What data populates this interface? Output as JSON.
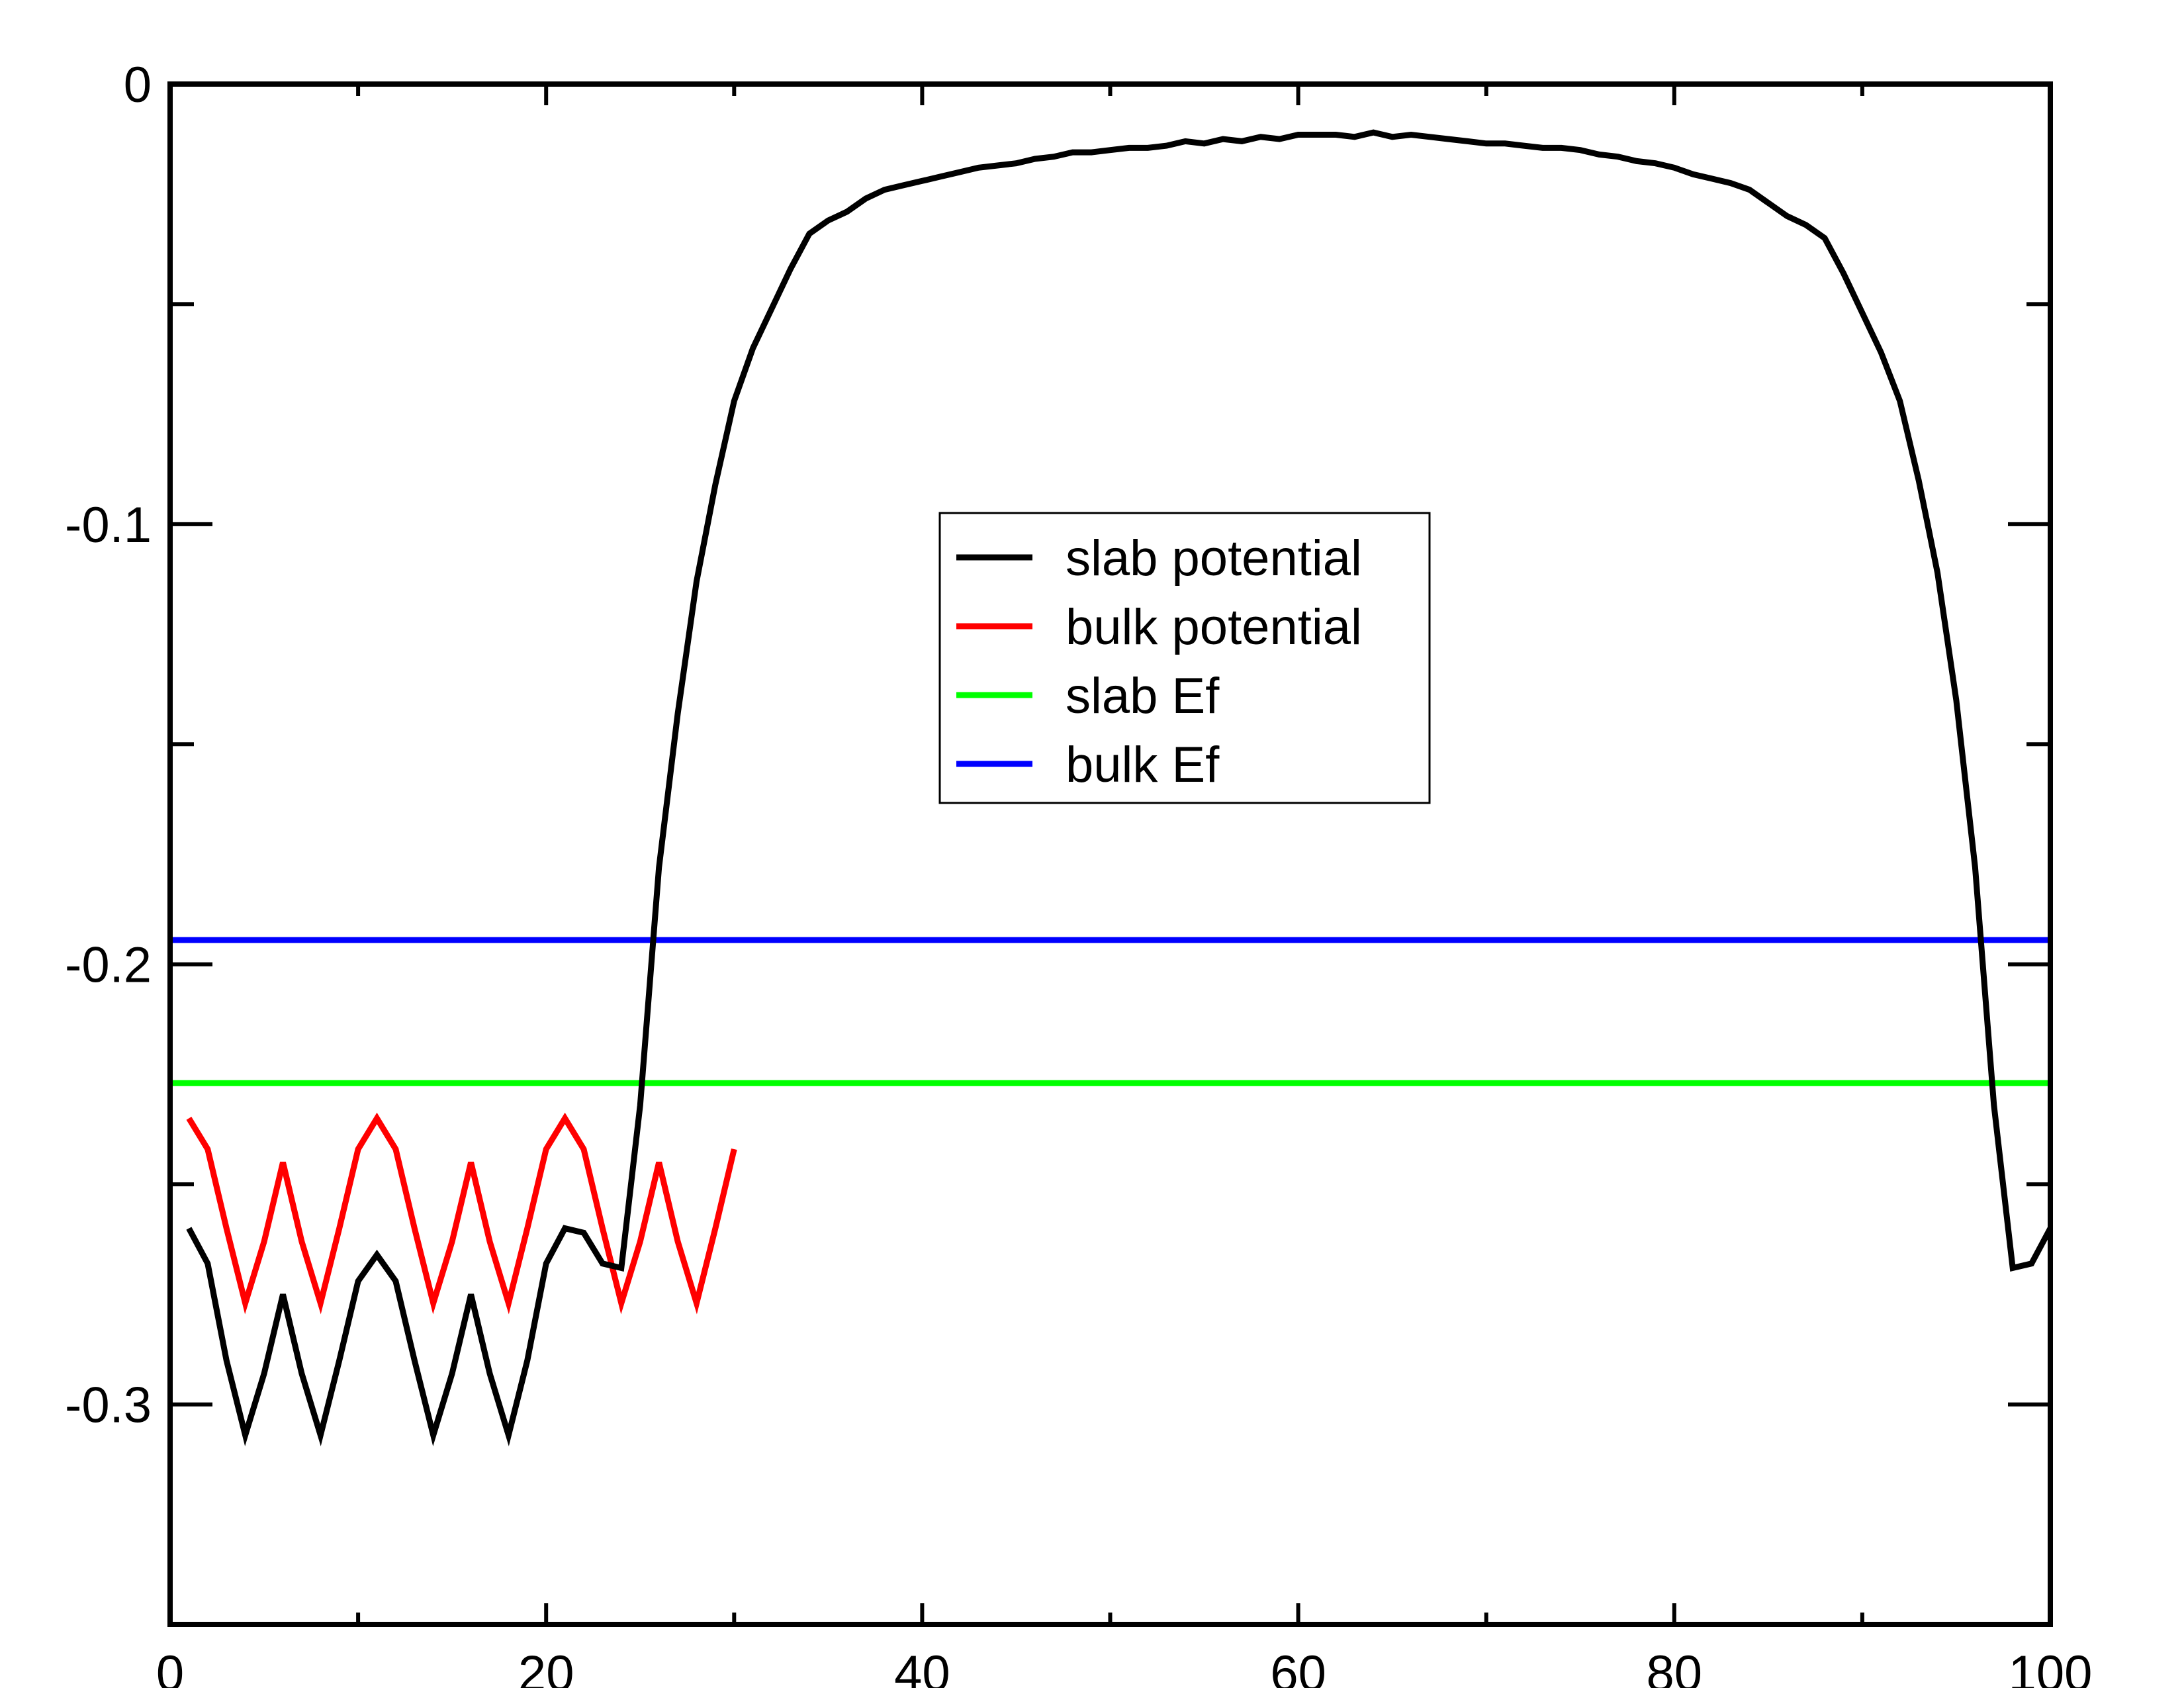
{
  "chart_data": {
    "type": "line",
    "title": "",
    "xlabel": "",
    "ylabel": "",
    "xlim": [
      0,
      100
    ],
    "ylim": [
      -0.35,
      0
    ],
    "x_ticks": [
      0,
      20,
      40,
      60,
      80,
      100
    ],
    "x_tick_labels": [
      "0",
      "20",
      "40",
      "60",
      "80",
      "100"
    ],
    "x_minor_ticks": [
      10,
      30,
      50,
      70,
      90
    ],
    "y_ticks": [
      0,
      -0.1,
      -0.2,
      -0.3
    ],
    "y_tick_labels": [
      "0",
      "-0.1",
      "-0.2",
      "-0.3"
    ],
    "y_minor_ticks": [
      -0.05,
      -0.15,
      -0.25
    ],
    "grid": false,
    "legend_position": "center",
    "series": [
      {
        "name": "slab potential",
        "color": "#000000",
        "x": [
          1,
          2,
          3,
          4,
          5,
          6,
          7,
          8,
          9,
          10,
          11,
          12,
          13,
          14,
          15,
          16,
          17,
          18,
          19,
          20,
          21,
          22,
          23,
          24,
          25,
          26,
          27,
          28,
          29,
          30,
          31,
          32,
          33,
          34,
          35,
          36,
          37,
          38,
          39,
          40,
          41,
          42,
          43,
          44,
          45,
          46,
          47,
          48,
          49,
          50,
          51,
          52,
          53,
          54,
          55,
          56,
          57,
          58,
          59,
          60,
          61,
          62,
          63,
          64,
          65,
          66,
          67,
          68,
          69,
          70,
          71,
          72,
          73,
          74,
          75,
          76,
          77,
          78,
          79,
          80,
          81,
          82,
          83,
          84,
          85,
          86,
          87,
          88,
          89,
          90,
          91,
          92,
          93,
          94,
          95,
          96,
          97,
          98,
          99,
          100
        ],
        "y": [
          -0.26,
          -0.268,
          -0.29,
          -0.307,
          -0.293,
          -0.275,
          -0.293,
          -0.307,
          -0.29,
          -0.272,
          -0.266,
          -0.272,
          -0.29,
          -0.307,
          -0.293,
          -0.275,
          -0.293,
          -0.307,
          -0.29,
          -0.268,
          -0.26,
          -0.261,
          -0.268,
          -0.269,
          -0.232,
          -0.178,
          -0.143,
          -0.113,
          -0.091,
          -0.072,
          -0.06,
          -0.051,
          -0.042,
          -0.034,
          -0.031,
          -0.029,
          -0.026,
          -0.024,
          -0.023,
          -0.022,
          -0.021,
          -0.02,
          -0.019,
          -0.0185,
          -0.018,
          -0.017,
          -0.0165,
          -0.0155,
          -0.0155,
          -0.015,
          -0.0145,
          -0.0145,
          -0.014,
          -0.013,
          -0.0135,
          -0.0125,
          -0.013,
          -0.012,
          -0.0125,
          -0.0115,
          -0.0115,
          -0.0115,
          -0.012,
          -0.011,
          -0.012,
          -0.0115,
          -0.012,
          -0.0125,
          -0.013,
          -0.0135,
          -0.0135,
          -0.014,
          -0.0145,
          -0.0145,
          -0.015,
          -0.016,
          -0.0165,
          -0.0175,
          -0.018,
          -0.019,
          -0.0205,
          -0.0215,
          -0.0225,
          -0.024,
          -0.027,
          -0.03,
          -0.032,
          -0.035,
          -0.043,
          -0.052,
          -0.061,
          -0.072,
          -0.09,
          -0.111,
          -0.14,
          -0.178,
          -0.232,
          -0.269,
          -0.268,
          -0.26
        ]
      },
      {
        "name": "bulk potential",
        "color": "#ff0000",
        "x": [
          1,
          2,
          3,
          4,
          5,
          6,
          7,
          8,
          9,
          10,
          11,
          12,
          13,
          14,
          15,
          16,
          17,
          18,
          19,
          20,
          21,
          22,
          23,
          24,
          25,
          26,
          27,
          28,
          29,
          30
        ],
        "y": [
          -0.235,
          -0.242,
          -0.26,
          -0.277,
          -0.263,
          -0.245,
          -0.263,
          -0.277,
          -0.26,
          -0.242,
          -0.235,
          -0.242,
          -0.26,
          -0.277,
          -0.263,
          -0.245,
          -0.263,
          -0.277,
          -0.26,
          -0.242,
          -0.235,
          -0.242,
          -0.26,
          -0.277,
          -0.263,
          -0.245,
          -0.263,
          -0.277,
          -0.26,
          -0.242
        ]
      },
      {
        "name": "slab Ef",
        "color": "#00ff00",
        "x": [
          0,
          100
        ],
        "y": [
          -0.227,
          -0.227
        ]
      },
      {
        "name": "bulk Ef",
        "color": "#0000ff",
        "x": [
          0,
          100
        ],
        "y": [
          -0.1945,
          -0.1945
        ]
      }
    ]
  }
}
